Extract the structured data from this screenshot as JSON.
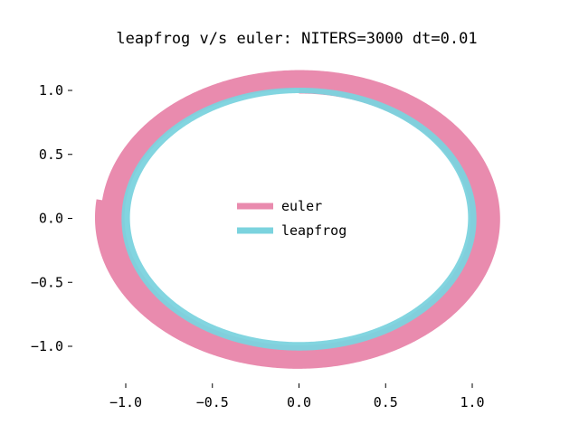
{
  "chart_data": {
    "type": "line",
    "title": "leapfrog v/s euler: NITERS=3000 dt=0.01",
    "xlabel": "",
    "ylabel": "",
    "xlim": [
      -1.2,
      1.2
    ],
    "ylim": [
      -1.22,
      1.22
    ],
    "x_ticks": [
      -1.0,
      -0.5,
      0.0,
      0.5,
      1.0
    ],
    "y_ticks": [
      -1.0,
      -0.5,
      0.0,
      0.5,
      1.0
    ],
    "x_tick_labels": [
      "−1.0",
      "−0.5",
      "0.0",
      "0.5",
      "1.0"
    ],
    "y_tick_labels": [
      "−1.0",
      "−0.5",
      "0.0",
      "0.5",
      "1.0"
    ],
    "grid": false,
    "legend": "center",
    "series": [
      {
        "name": "euler",
        "color": "#E98BAE",
        "description": "outward spiral, radius 1.0 to about 1.16",
        "r_start": 1.0,
        "r_end": 1.16,
        "turns": 4.77
      },
      {
        "name": "leapfrog",
        "color": "#7BD3DE",
        "description": "stable closed orbit of radius ~1.0",
        "r": 1.0,
        "turns": 4.77
      }
    ]
  }
}
